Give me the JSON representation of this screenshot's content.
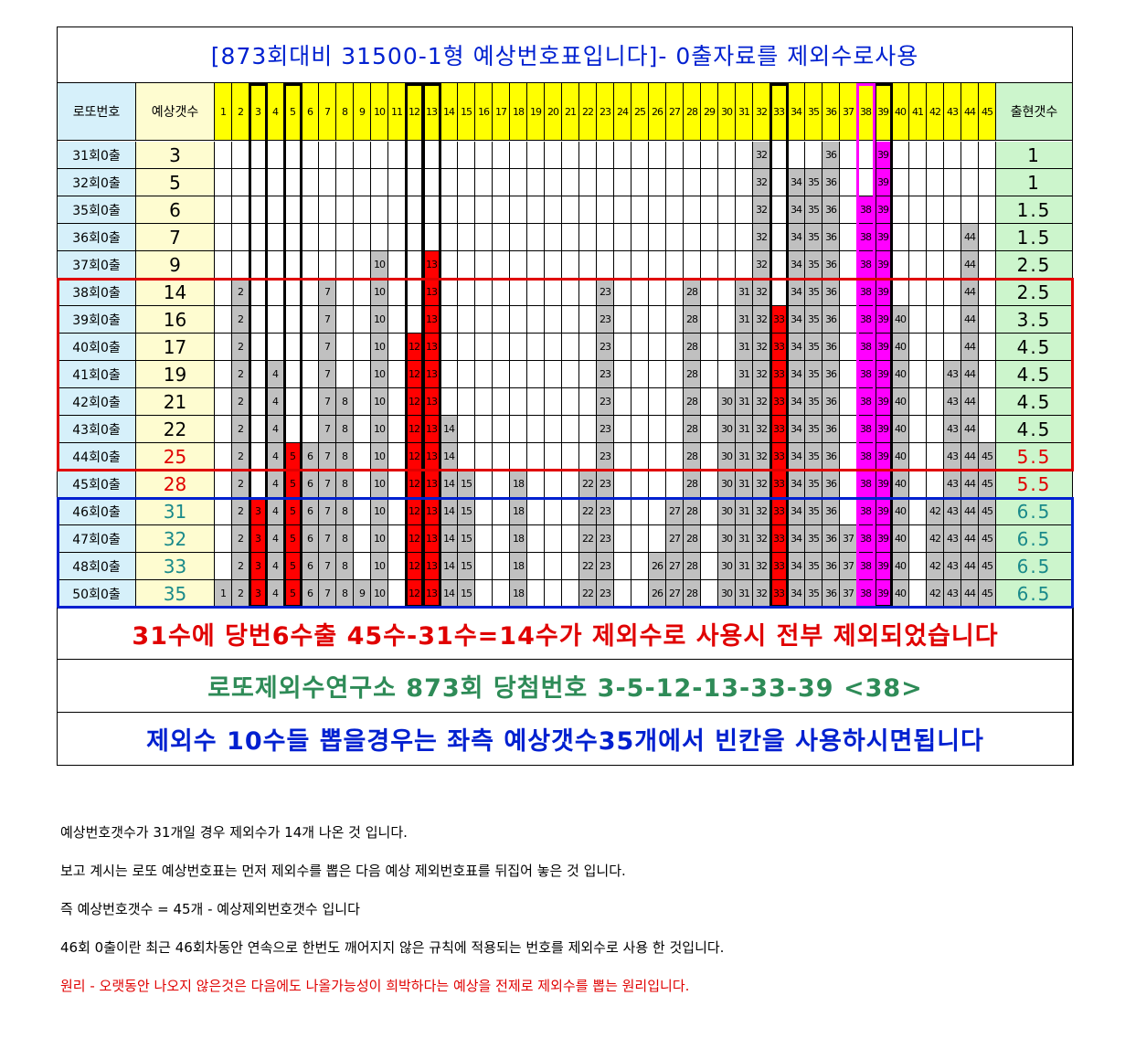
{
  "title": "[873회대비 31500-1형 예상번호표입니다]- 0출자료를 제외수로사용",
  "header": {
    "label": "로또번호",
    "count": "예상갯수",
    "appear": "출현갯수"
  },
  "columns": [
    1,
    2,
    3,
    4,
    5,
    6,
    7,
    8,
    9,
    10,
    11,
    12,
    13,
    14,
    15,
    16,
    17,
    18,
    19,
    20,
    21,
    22,
    23,
    24,
    25,
    26,
    27,
    28,
    29,
    30,
    31,
    32,
    33,
    34,
    35,
    36,
    37,
    38,
    39,
    40,
    41,
    42,
    43,
    44,
    45
  ],
  "highlight": {
    "red": [
      3,
      5,
      12,
      13,
      33
    ],
    "magenta": [
      38,
      39
    ],
    "gray": "#c0c0c0"
  },
  "marked_columns": {
    "black": [
      3,
      5,
      12,
      13,
      33,
      39
    ],
    "magenta": [
      38
    ]
  },
  "rows": [
    {
      "label": "31회0출",
      "count": 3,
      "color": "#000",
      "numbers": [
        32,
        36,
        39
      ],
      "appear": 1
    },
    {
      "label": "32회0출",
      "count": 5,
      "color": "#000",
      "numbers": [
        32,
        34,
        35,
        36,
        39
      ],
      "appear": 1
    },
    {
      "label": "35회0출",
      "count": 6,
      "color": "#000",
      "numbers": [
        32,
        34,
        35,
        36,
        38,
        39
      ],
      "appear": 1.5
    },
    {
      "label": "36회0출",
      "count": 7,
      "color": "#000",
      "numbers": [
        32,
        34,
        35,
        36,
        38,
        39,
        44
      ],
      "appear": 1.5
    },
    {
      "label": "37회0출",
      "count": 9,
      "color": "#000",
      "numbers": [
        10,
        13,
        32,
        34,
        35,
        36,
        38,
        39,
        44
      ],
      "appear": 2.5
    },
    {
      "label": "38회0출",
      "count": 14,
      "color": "#000",
      "numbers": [
        2,
        7,
        10,
        13,
        23,
        28,
        31,
        32,
        34,
        35,
        36,
        38,
        39,
        44
      ],
      "appear": 2.5
    },
    {
      "label": "39회0출",
      "count": 16,
      "color": "#000",
      "numbers": [
        2,
        7,
        10,
        13,
        23,
        28,
        31,
        32,
        33,
        34,
        35,
        36,
        38,
        39,
        40,
        44
      ],
      "appear": 3.5
    },
    {
      "label": "40회0출",
      "count": 17,
      "color": "#000",
      "numbers": [
        2,
        7,
        10,
        12,
        13,
        23,
        28,
        31,
        32,
        33,
        34,
        35,
        36,
        38,
        39,
        40,
        44
      ],
      "appear": 4.5
    },
    {
      "label": "41회0출",
      "count": 19,
      "color": "#000",
      "numbers": [
        2,
        4,
        7,
        10,
        12,
        13,
        23,
        28,
        31,
        32,
        33,
        34,
        35,
        36,
        38,
        39,
        40,
        43,
        44
      ],
      "appear": 4.5
    },
    {
      "label": "42회0출",
      "count": 21,
      "color": "#000",
      "numbers": [
        2,
        4,
        7,
        8,
        10,
        12,
        13,
        23,
        28,
        30,
        31,
        32,
        33,
        34,
        35,
        36,
        38,
        39,
        40,
        43,
        44
      ],
      "appear": 4.5
    },
    {
      "label": "43회0출",
      "count": 22,
      "color": "#000",
      "numbers": [
        2,
        4,
        7,
        8,
        10,
        12,
        13,
        14,
        23,
        28,
        30,
        31,
        32,
        33,
        34,
        35,
        36,
        38,
        39,
        40,
        43,
        44
      ],
      "appear": 4.5
    },
    {
      "label": "44회0출",
      "count": 25,
      "color": "#e00000",
      "numbers": [
        2,
        4,
        5,
        6,
        7,
        8,
        10,
        12,
        13,
        14,
        23,
        28,
        30,
        31,
        32,
        33,
        34,
        35,
        36,
        38,
        39,
        40,
        43,
        44,
        45
      ],
      "appear": 5.5
    },
    {
      "label": "45회0출",
      "count": 28,
      "color": "#e00000",
      "numbers": [
        2,
        4,
        5,
        6,
        7,
        8,
        10,
        12,
        13,
        14,
        15,
        18,
        22,
        23,
        28,
        30,
        31,
        32,
        33,
        34,
        35,
        36,
        38,
        39,
        40,
        43,
        44,
        45
      ],
      "appear": 5.5
    },
    {
      "label": "46회0출",
      "count": 31,
      "color": "#1a8a8a",
      "numbers": [
        2,
        3,
        4,
        5,
        6,
        7,
        8,
        10,
        12,
        13,
        14,
        15,
        18,
        22,
        23,
        27,
        28,
        30,
        31,
        32,
        33,
        34,
        35,
        36,
        38,
        39,
        40,
        42,
        43,
        44,
        45
      ],
      "appear": 6.5
    },
    {
      "label": "47회0출",
      "count": 32,
      "color": "#1a8a8a",
      "numbers": [
        2,
        3,
        4,
        5,
        6,
        7,
        8,
        10,
        12,
        13,
        14,
        15,
        18,
        22,
        23,
        27,
        28,
        30,
        31,
        32,
        33,
        34,
        35,
        36,
        37,
        38,
        39,
        40,
        42,
        43,
        44,
        45
      ],
      "appear": 6.5
    },
    {
      "label": "48회0출",
      "count": 33,
      "color": "#1a8a8a",
      "numbers": [
        2,
        3,
        4,
        5,
        6,
        7,
        8,
        10,
        12,
        13,
        14,
        15,
        18,
        22,
        23,
        26,
        27,
        28,
        30,
        31,
        32,
        33,
        34,
        35,
        36,
        37,
        38,
        39,
        40,
        42,
        43,
        44,
        45
      ],
      "appear": 6.5
    },
    {
      "label": "50회0출",
      "count": 35,
      "color": "#1a8a8a",
      "numbers": [
        1,
        2,
        3,
        4,
        5,
        6,
        7,
        8,
        9,
        10,
        12,
        13,
        14,
        15,
        18,
        22,
        23,
        26,
        27,
        28,
        30,
        31,
        32,
        33,
        34,
        35,
        36,
        37,
        38,
        39,
        40,
        42,
        43,
        44,
        45
      ],
      "appear": 6.5
    }
  ],
  "boxes": [
    {
      "from": 5,
      "to": 11,
      "color": "#e00000"
    },
    {
      "from": 13,
      "to": 16,
      "color": "#0020d0"
    }
  ],
  "banners": [
    {
      "text": "31수에 당번6수출  45수-31수=14수가 제외수로 사용시 전부 제외되었습니다",
      "color": "#e00000"
    },
    {
      "text": "로또제외수연구소   873회 당첨번호 3-5-12-13-33-39 <38>",
      "color": "#2e8b57"
    },
    {
      "text": "제외수 10수들 뽑을경우는 좌측 예상갯수35개에서 빈칸을 사용하시면됩니다",
      "color": "#0020d0"
    }
  ],
  "notes": [
    {
      "text": "예상번호갯수가 31개일  경우 제외수가 14개 나온 것 입니다.",
      "color": "#000"
    },
    {
      "text": "보고 계시는 로또 예상번호표는 먼저 제외수를 뽑은 다음 예상 제외번호표를 뒤집어 놓은 것 입니다.",
      "color": "#000"
    },
    {
      "text": "즉 예상번호갯수  =  45개 -  예상제외번호갯수 입니다",
      "color": "#000"
    },
    {
      "text": "46회 0출이란 최근 46회차동안 연속으로 한번도 깨어지지 않은 규칙에 적용되는 번호를 제외수로 사용 한 것입니다.",
      "color": "#000"
    },
    {
      "text": "원리 - 오랫동안 나오지 않은것은 다음에도 나올가능성이 희박하다는 예상을 전제로 제외수를 뽑는 원리입니다.",
      "color": "#e00000"
    }
  ]
}
